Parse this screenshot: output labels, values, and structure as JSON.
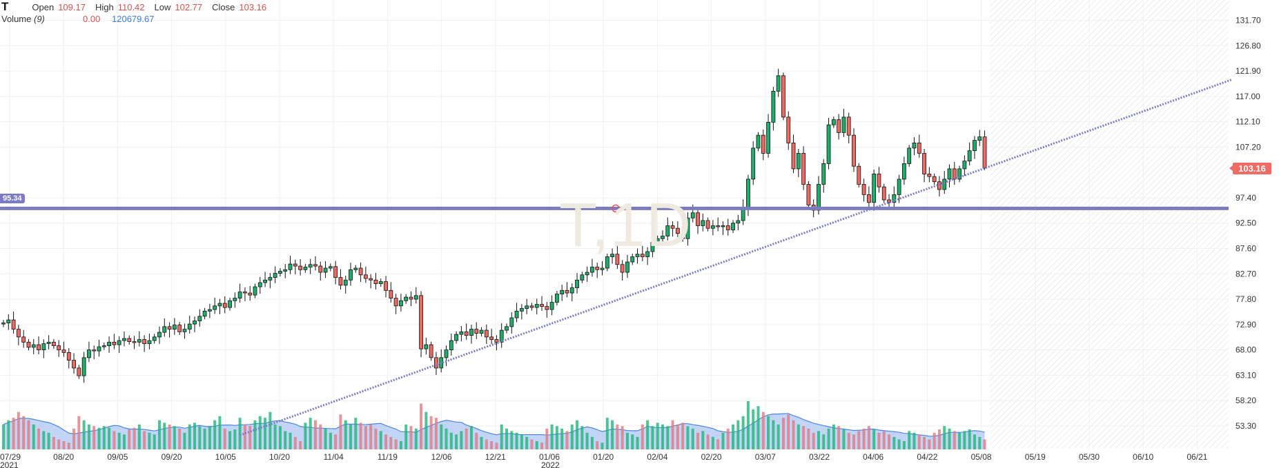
{
  "header": {
    "symbol": "T",
    "open_label": "Open",
    "open": "109.17",
    "high_label": "High",
    "high": "110.42",
    "low_label": "Low",
    "low": "102.77",
    "close_label": "Close",
    "close": "103.16",
    "volume_label": "Volume",
    "volume_period": "(9)",
    "volume_value": "0.00",
    "volume_ma": "120679.67"
  },
  "watermark": "T,1D",
  "horizontal_line": {
    "label": "95.34",
    "price": 95.34,
    "color": "#7b7bc4"
  },
  "last_price_label": "103.16",
  "colors": {
    "up": "#1fad6a",
    "down": "#ec6a62",
    "volume_area": "#bcd0f5",
    "volume_line": "#4a86e8",
    "trend": "#7b7bc4",
    "grid": "#f0f0f0"
  },
  "chart_data": {
    "type": "candlestick",
    "title": "T,1D",
    "ylim": [
      49,
      133
    ],
    "y_ticks": [
      "131.70",
      "126.80",
      "121.90",
      "117.00",
      "112.10",
      "107.20",
      "97.40",
      "92.50",
      "87.60",
      "82.70",
      "77.80",
      "72.90",
      "68.00",
      "63.10",
      "58.20",
      "53.30"
    ],
    "x_ticks": [
      "07/29",
      "08/20",
      "09/05",
      "09/20",
      "10/05",
      "10/20",
      "11/04",
      "11/19",
      "12/06",
      "12/21",
      "01/06",
      "01/20",
      "02/04",
      "02/20",
      "03/07",
      "03/22",
      "04/06",
      "04/22",
      "05/08",
      "05/19",
      "05/30",
      "06/10",
      "06/21"
    ],
    "x_tick_years": {
      "0": "2021",
      "10": "2022"
    },
    "first_open": 73.0,
    "last_bar": {
      "open": 109.17,
      "high": 110.42,
      "low": 102.77,
      "close": 103.16
    },
    "close": [
      73.2,
      73.8,
      72,
      70.5,
      69.5,
      68.5,
      69,
      68,
      69.2,
      69.5,
      68.8,
      68,
      67.5,
      66,
      64.5,
      63,
      66.5,
      68,
      67.8,
      68.6,
      68.8,
      69.5,
      69,
      69.8,
      70.2,
      69.6,
      69.5,
      70,
      69.2,
      69.8,
      70.5,
      71.4,
      72.5,
      72,
      72.8,
      71.5,
      72,
      73,
      73.6,
      74.5,
      75.5,
      75.8,
      76.5,
      77,
      76.2,
      77.5,
      78,
      79.2,
      79,
      78.6,
      80.2,
      81,
      81.5,
      82,
      82.8,
      83.2,
      83.5,
      84.6,
      84.2,
      83.5,
      84,
      84.5,
      84.2,
      83,
      83.8,
      84.1,
      82,
      80.5,
      81.5,
      83.5,
      83.8,
      82.5,
      81.8,
      81.5,
      80.8,
      81.2,
      79.5,
      78,
      76.5,
      77.5,
      78.2,
      77.8,
      78.5,
      68.2,
      69,
      66.5,
      64.5,
      66.5,
      68,
      69.8,
      71,
      71.5,
      70.8,
      72,
      71.2,
      71.8,
      70.5,
      70,
      69.5,
      71.8,
      72.5,
      74.2,
      75.5,
      76,
      76.5,
      76.2,
      76.8,
      76.4,
      75.8,
      77.2,
      78.8,
      79.5,
      79,
      80,
      81.5,
      82.5,
      83,
      84,
      83.5,
      83.8,
      86,
      86.5,
      84.5,
      83,
      85,
      86,
      86.5,
      86,
      87,
      88.8,
      89.5,
      90,
      92,
      91.5,
      90.5,
      89.5,
      93.5,
      94.5,
      92,
      93,
      91.5,
      92,
      91.8,
      92,
      91.2,
      92.5,
      93,
      95.5,
      101,
      107,
      109.5,
      106,
      112,
      118,
      121,
      113,
      108,
      103,
      106,
      100,
      96,
      95,
      100,
      104,
      111.5,
      112.5,
      110,
      113,
      109.5,
      103.5,
      100,
      98,
      96.5,
      102,
      99.5,
      97,
      96.5,
      98,
      101,
      104,
      107,
      108,
      106,
      102,
      101.5,
      100.5,
      99,
      101,
      103,
      101,
      103,
      104.5,
      106.5,
      108.5,
      109.17,
      103.16
    ],
    "volume": [
      30,
      35,
      38,
      45,
      40,
      35,
      30,
      25,
      22,
      20,
      15,
      12,
      10,
      8,
      25,
      40,
      35,
      30,
      28,
      26,
      28,
      26,
      22,
      20,
      18,
      24,
      26,
      30,
      22,
      20,
      18,
      35,
      32,
      30,
      28,
      25,
      20,
      30,
      32,
      28,
      25,
      28,
      35,
      40,
      25,
      22,
      24,
      38,
      30,
      28,
      35,
      40,
      38,
      45,
      30,
      28,
      22,
      20,
      15,
      10,
      32,
      38,
      35,
      30,
      25,
      20,
      18,
      42,
      35,
      30,
      38,
      32,
      28,
      30,
      25,
      22,
      18,
      15,
      12,
      10,
      30,
      28,
      25,
      55,
      45,
      40,
      38,
      30,
      25,
      20,
      18,
      22,
      25,
      28,
      20,
      15,
      12,
      10,
      8,
      30,
      25,
      22,
      20,
      18,
      15,
      12,
      10,
      8,
      25,
      30,
      28,
      25,
      22,
      30,
      35,
      28,
      20,
      15,
      10,
      8,
      38,
      35,
      30,
      28,
      20,
      18,
      15,
      30,
      35,
      28,
      32,
      30,
      28,
      35,
      30,
      32,
      28,
      25,
      20,
      22,
      18,
      15,
      12,
      20,
      25,
      30,
      35,
      40,
      58,
      48,
      52,
      45,
      40,
      35,
      30,
      38,
      42,
      35,
      30,
      28,
      25,
      20,
      22,
      18,
      25,
      30,
      28,
      24,
      20,
      18,
      22,
      25,
      28,
      24,
      20,
      22,
      18,
      15,
      12,
      10,
      22,
      20,
      18,
      15,
      12,
      20,
      24,
      28,
      25,
      22,
      20,
      22,
      24,
      18,
      15,
      12
    ],
    "volume_ma_period": 9,
    "trendline": {
      "start": {
        "bar": 47,
        "price": 51.5
      },
      "end": {
        "bar": 244,
        "price": 120.2
      }
    }
  }
}
